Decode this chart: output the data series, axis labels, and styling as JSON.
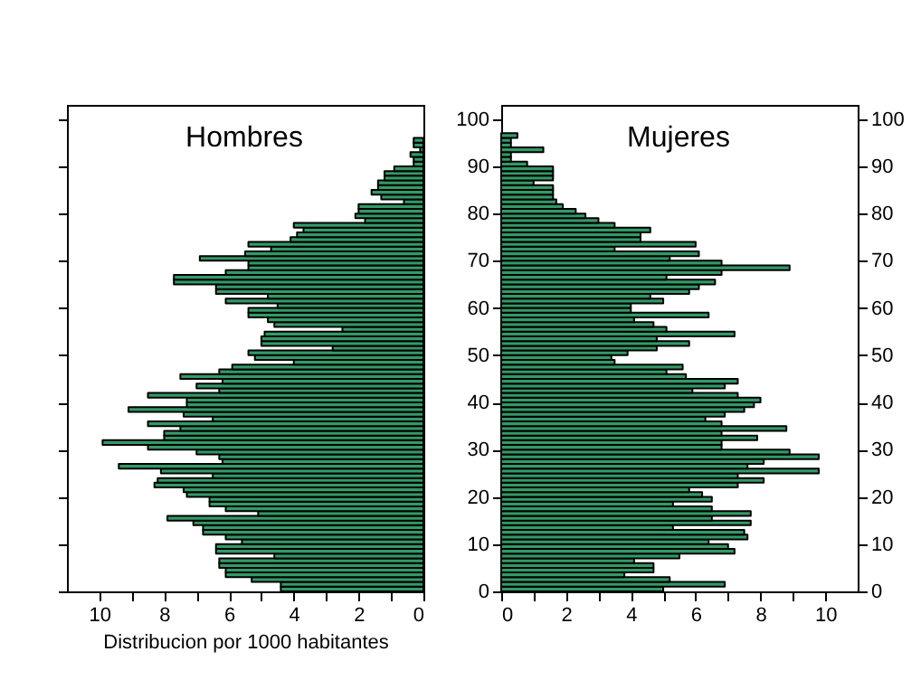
{
  "chart_data": [
    {
      "type": "bar",
      "orientation": "horizontal",
      "title": "Hombres",
      "xlabel": "Distribucion por 1000 habitantes",
      "color": "#339966",
      "x": [
        0,
        1,
        2,
        3,
        4,
        5,
        6,
        7,
        8,
        9,
        10,
        11,
        12,
        13,
        14,
        15,
        16,
        17,
        18,
        19,
        20,
        21,
        22,
        23,
        24,
        25,
        26,
        27,
        28,
        29,
        30,
        31,
        32,
        33,
        34,
        35,
        36,
        37,
        38,
        39,
        40,
        41,
        42,
        43,
        44,
        45,
        46,
        47,
        48,
        49,
        50,
        51,
        52,
        53,
        54,
        55,
        56,
        57,
        58,
        59,
        60,
        61,
        62,
        63,
        64,
        65,
        66,
        67,
        68,
        69,
        70,
        71,
        72,
        73,
        74,
        75,
        76,
        77,
        78,
        79,
        80,
        81,
        82,
        83,
        84,
        85,
        86,
        87,
        88,
        89,
        90,
        91,
        92,
        93,
        94,
        95
      ],
      "values": [
        4.4,
        4.4,
        5.3,
        6.1,
        6.1,
        6.3,
        6.3,
        4.6,
        6.4,
        6.4,
        5.6,
        6.1,
        6.8,
        6.8,
        7.1,
        7.9,
        5.1,
        6.1,
        6.6,
        6.6,
        7.3,
        7.4,
        8.3,
        8.2,
        6.5,
        8.1,
        9.4,
        6.2,
        6.3,
        7.0,
        8.5,
        9.9,
        8.0,
        8.0,
        7.5,
        8.5,
        6.5,
        7.4,
        9.1,
        7.3,
        7.3,
        8.5,
        6.3,
        7.0,
        6.2,
        7.5,
        6.3,
        5.9,
        4.0,
        5.2,
        5.4,
        2.8,
        5.0,
        5.0,
        4.9,
        2.5,
        4.6,
        4.8,
        5.4,
        5.4,
        4.5,
        6.1,
        4.8,
        6.4,
        6.4,
        7.7,
        7.7,
        6.1,
        5.4,
        5.4,
        6.9,
        5.5,
        4.7,
        5.4,
        4.1,
        3.9,
        3.7,
        4.0,
        1.8,
        2.1,
        2.0,
        2.0,
        0.6,
        1.3,
        1.6,
        1.4,
        1.4,
        1.2,
        1.2,
        0.9,
        0.3,
        0.3,
        0.4,
        0.1,
        0.3,
        0.3
      ],
      "xlim": [
        11,
        0
      ],
      "xticks": [
        0,
        {
          "value": 1,
          "label": null
        },
        2,
        {
          "value": 3,
          "label": null
        },
        4,
        {
          "value": 5,
          "label": null
        },
        6,
        {
          "value": 7,
          "label": null
        },
        8,
        {
          "value": 9,
          "label": null
        },
        10
      ],
      "ylim": [
        0,
        103
      ],
      "yticks": [
        {
          "value": 0,
          "label": null
        },
        {
          "value": 10,
          "label": null
        },
        {
          "value": 20,
          "label": null
        },
        {
          "value": 30,
          "label": null
        },
        {
          "value": 40,
          "label": null
        },
        {
          "value": 50,
          "label": null
        },
        {
          "value": 60,
          "label": null
        },
        {
          "value": 70,
          "label": null
        },
        {
          "value": 80,
          "label": null
        },
        {
          "value": 90,
          "label": null
        },
        {
          "value": 100,
          "label": null
        }
      ],
      "tick_labels": "x"
    },
    {
      "type": "bar",
      "orientation": "horizontal",
      "title": "Mujeres",
      "color": "#339966",
      "x": [
        0,
        1,
        2,
        3,
        4,
        5,
        6,
        7,
        8,
        9,
        10,
        11,
        12,
        13,
        14,
        15,
        16,
        17,
        18,
        19,
        20,
        21,
        22,
        23,
        24,
        25,
        26,
        27,
        28,
        29,
        30,
        31,
        32,
        33,
        34,
        35,
        36,
        37,
        38,
        39,
        40,
        41,
        42,
        43,
        44,
        45,
        46,
        47,
        48,
        49,
        50,
        51,
        52,
        53,
        54,
        55,
        56,
        57,
        58,
        59,
        60,
        61,
        62,
        63,
        64,
        65,
        66,
        67,
        68,
        69,
        70,
        71,
        72,
        73,
        74,
        75,
        76,
        77,
        78,
        79,
        80,
        81,
        82,
        83,
        84,
        85,
        86,
        87,
        88,
        89,
        90,
        91,
        92,
        93,
        94,
        95,
        96
      ],
      "values": [
        5.0,
        6.9,
        5.2,
        3.8,
        4.7,
        4.7,
        4.1,
        5.5,
        7.2,
        7.0,
        6.4,
        7.6,
        7.5,
        5.3,
        7.7,
        6.5,
        7.7,
        6.5,
        5.3,
        6.5,
        6.2,
        5.8,
        7.3,
        8.1,
        7.3,
        9.8,
        7.6,
        8.1,
        9.8,
        8.9,
        6.8,
        6.8,
        7.9,
        6.8,
        8.8,
        6.8,
        6.3,
        6.9,
        7.5,
        7.8,
        8.0,
        7.3,
        5.9,
        6.9,
        7.3,
        5.7,
        5.1,
        5.6,
        3.5,
        3.4,
        3.9,
        4.8,
        5.8,
        4.8,
        7.2,
        5.1,
        4.7,
        4.1,
        6.4,
        4.0,
        4.0,
        5.0,
        4.6,
        5.8,
        6.1,
        6.6,
        5.1,
        6.8,
        8.9,
        6.8,
        5.2,
        6.1,
        3.5,
        6.0,
        4.3,
        4.3,
        4.6,
        3.5,
        3.0,
        2.6,
        2.3,
        1.9,
        1.7,
        1.6,
        1.6,
        1.6,
        1.0,
        1.6,
        1.6,
        1.6,
        0.8,
        0.3,
        0.3,
        1.3,
        0.3,
        0.3,
        0.5
      ],
      "xlim": [
        0,
        11
      ],
      "xticks": [
        0,
        {
          "value": 1,
          "label": null
        },
        2,
        {
          "value": 3,
          "label": null
        },
        4,
        {
          "value": 5,
          "label": null
        },
        6,
        {
          "value": 7,
          "label": null
        },
        8,
        {
          "value": 9,
          "label": null
        },
        10
      ],
      "ylim": [
        0,
        103
      ],
      "yticks": [
        0,
        10,
        20,
        30,
        40,
        50,
        60,
        70,
        80,
        90,
        100
      ],
      "y2lim": [
        0,
        103
      ],
      "y2ticks": [
        0,
        10,
        20,
        30,
        40,
        50,
        60,
        70,
        80,
        90,
        100
      ]
    }
  ]
}
